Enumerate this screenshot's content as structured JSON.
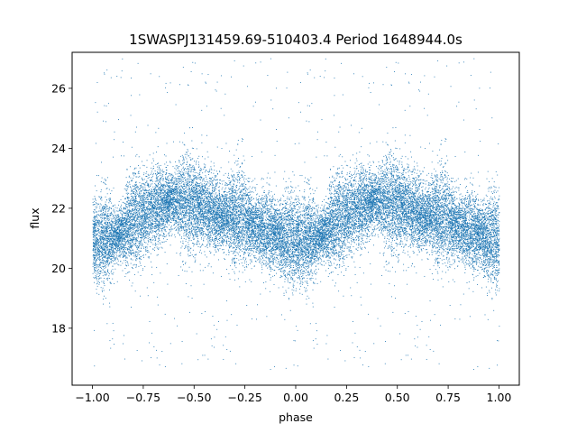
{
  "chart_data": {
    "type": "scatter",
    "title": "1SWASPJ131459.69-510403.4 Period 1648944.0s",
    "xlabel": "phase",
    "ylabel": "flux",
    "xlim": [
      -1.1,
      1.1
    ],
    "ylim": [
      16.1,
      27.2
    ],
    "xticks": [
      -1.0,
      -0.75,
      -0.5,
      -0.25,
      0.0,
      0.25,
      0.5,
      0.75,
      1.0
    ],
    "xtick_labels": [
      "−1.00",
      "−0.75",
      "−0.50",
      "−0.25",
      "0.00",
      "0.25",
      "0.50",
      "0.75",
      "1.00"
    ],
    "yticks": [
      18,
      20,
      22,
      24,
      26
    ],
    "ytick_labels": [
      "18",
      "20",
      "22",
      "24",
      "26"
    ],
    "grid": false,
    "legend": "none",
    "marker_color": "#1f77b4",
    "series": [
      {
        "x_range": [
          -1.0,
          1.0
        ],
        "mirrored_period": 1.0,
        "baseline_flux_by_phase": [
          {
            "phase": 0.0,
            "flux": 20.9
          },
          {
            "phase": 0.1,
            "flux": 21.0
          },
          {
            "phase": 0.2,
            "flux": 21.6
          },
          {
            "phase": 0.3,
            "flux": 22.0
          },
          {
            "phase": 0.4,
            "flux": 22.3
          },
          {
            "phase": 0.5,
            "flux": 22.1
          },
          {
            "phase": 0.6,
            "flux": 21.8
          },
          {
            "phase": 0.7,
            "flux": 21.7
          },
          {
            "phase": 0.8,
            "flux": 21.4
          },
          {
            "phase": 0.9,
            "flux": 21.1
          },
          {
            "phase": 1.0,
            "flux": 20.9
          }
        ],
        "core_scatter": 0.75,
        "outlier_range": [
          16.6,
          27.0
        ],
        "point_count": 24000
      }
    ]
  }
}
